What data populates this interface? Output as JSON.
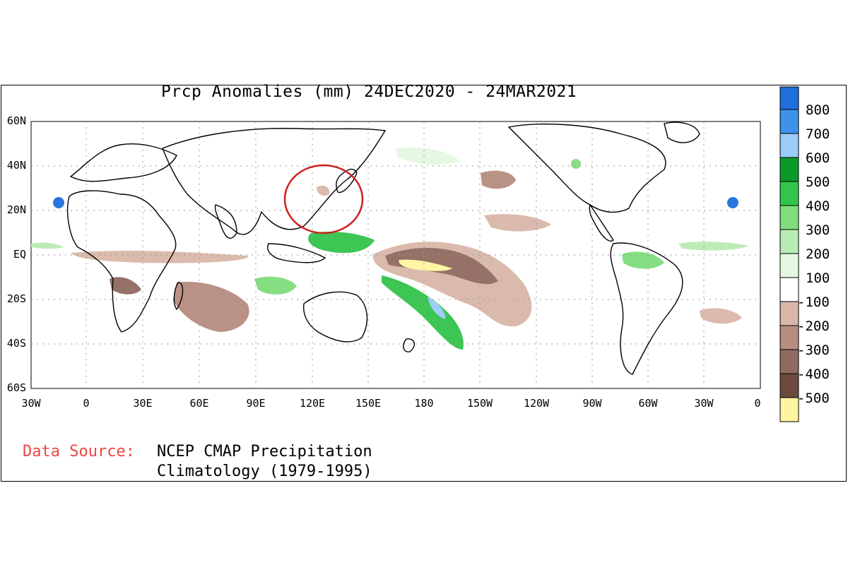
{
  "title": "Prcp Anomalies (mm) 24DEC2020 - 24MAR2021",
  "source": {
    "label": "Data Source:",
    "line1": "NCEP CMAP Precipitation",
    "line2": "Climatology (1979-1995)"
  },
  "axes": {
    "lat_labels": [
      "60N",
      "40N",
      "20N",
      "EQ",
      "20S",
      "40S",
      "60S"
    ],
    "lon_labels": [
      "30W",
      "0",
      "30E",
      "60E",
      "90E",
      "120E",
      "150E",
      "180",
      "150W",
      "120W",
      "90W",
      "60W",
      "30W",
      "0"
    ]
  },
  "legend": {
    "labels": [
      "800",
      "700",
      "600",
      "500",
      "400",
      "300",
      "200",
      "100",
      "-100",
      "-200",
      "-300",
      "-400",
      "-500"
    ],
    "colors": [
      "#1f6fdc",
      "#3d92ec",
      "#9bcbf7",
      "#0b9a2a",
      "#33c44b",
      "#7fdd7c",
      "#b9ecb3",
      "#e4f8e0",
      "#ffffff",
      "#d9b7a9",
      "#b78d7f",
      "#916a5f",
      "#6c4a3f",
      "#4d3128",
      "#fff5a0"
    ]
  },
  "annotation": {
    "type": "circle",
    "color": "#cc1f1f",
    "target": "East Asia / western Pacific"
  }
}
